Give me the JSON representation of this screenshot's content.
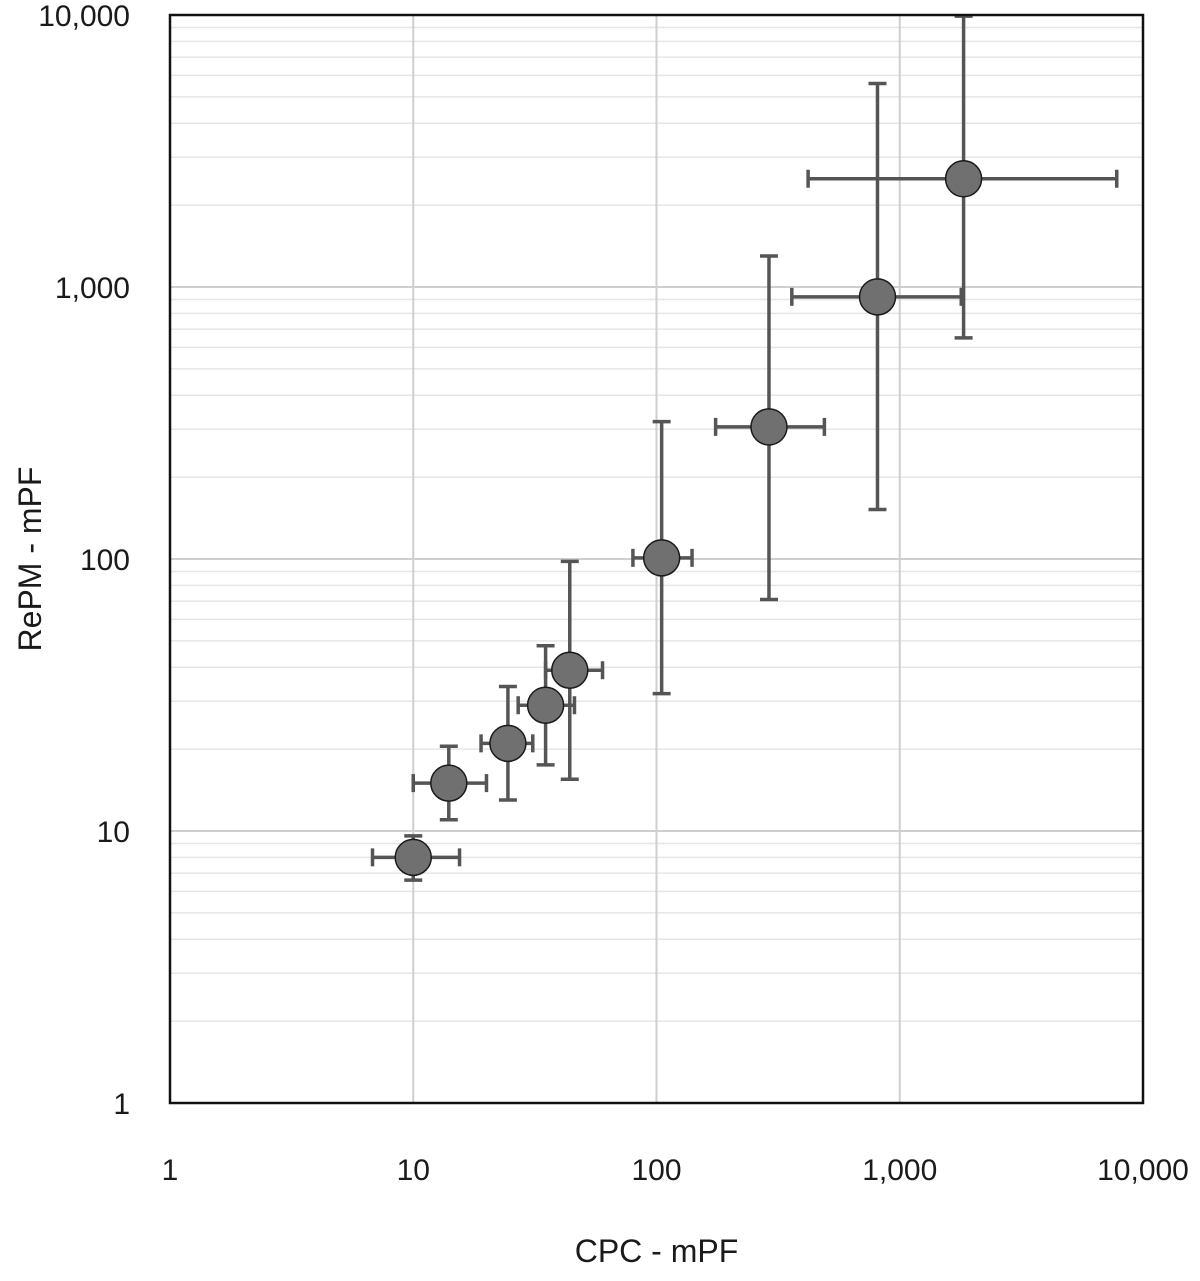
{
  "chart_data": {
    "type": "scatter",
    "xlabel": "CPC - mPF",
    "ylabel": "RePM - mPF",
    "xscale": "log",
    "yscale": "log",
    "xlim": [
      1,
      10000
    ],
    "ylim": [
      1,
      10000
    ],
    "x_ticks": [
      {
        "value": 1,
        "label": "1"
      },
      {
        "value": 10,
        "label": "10"
      },
      {
        "value": 100,
        "label": "100"
      },
      {
        "value": 1000,
        "label": "1,000"
      },
      {
        "value": 10000,
        "label": "10,000"
      }
    ],
    "y_ticks": [
      {
        "value": 1,
        "label": "1"
      },
      {
        "value": 10,
        "label": "10"
      },
      {
        "value": 100,
        "label": "100"
      },
      {
        "value": 1000,
        "label": "1,000"
      },
      {
        "value": 10000,
        "label": "10,000"
      }
    ],
    "grid": {
      "major": true,
      "minor_y": true,
      "minor_x": false
    },
    "points": [
      {
        "x": 10,
        "y": 8,
        "x_err": [
          6.8,
          15.5
        ],
        "y_err": [
          6.6,
          9.6
        ]
      },
      {
        "x": 14,
        "y": 15,
        "x_err": [
          10,
          20
        ],
        "y_err": [
          11,
          20.5
        ]
      },
      {
        "x": 24.5,
        "y": 21,
        "x_err": [
          19,
          31
        ],
        "y_err": [
          13,
          34
        ]
      },
      {
        "x": 35,
        "y": 29,
        "x_err": [
          27,
          46
        ],
        "y_err": [
          17.5,
          48
        ]
      },
      {
        "x": 44,
        "y": 39,
        "x_err": [
          35,
          60
        ],
        "y_err": [
          15.5,
          98
        ]
      },
      {
        "x": 105,
        "y": 101,
        "x_err": [
          80,
          140
        ],
        "y_err": [
          32,
          320
        ]
      },
      {
        "x": 290,
        "y": 306,
        "x_err": [
          175,
          490
        ],
        "y_err": [
          71,
          1300
        ]
      },
      {
        "x": 810,
        "y": 920,
        "x_err": [
          360,
          1790
        ],
        "y_err": [
          152,
          5600
        ]
      },
      {
        "x": 1830,
        "y": 2500,
        "x_err": [
          420,
          7800
        ],
        "y_err": [
          650,
          9900
        ]
      }
    ],
    "colors": {
      "marker_fill": "#707070",
      "marker_edge": "#1a1a1a",
      "error_bar": "#555555"
    }
  }
}
